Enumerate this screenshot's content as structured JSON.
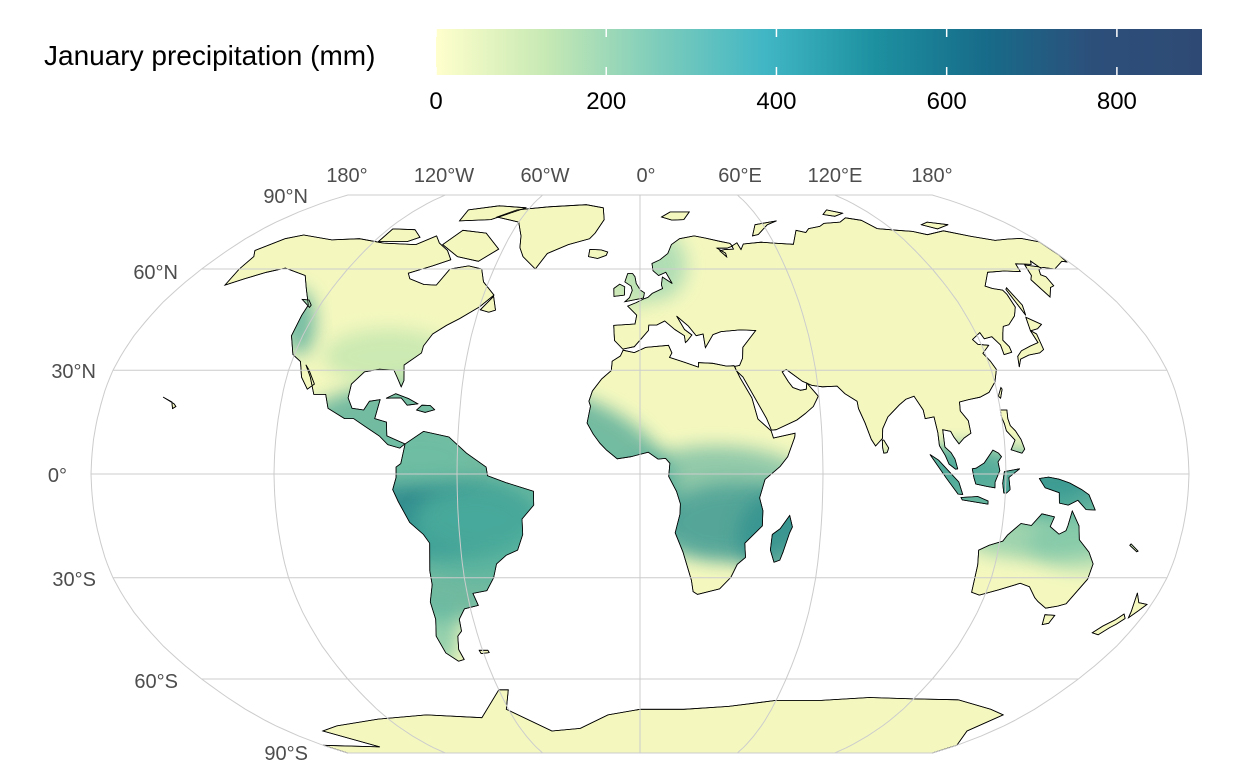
{
  "legend": {
    "title": "January precipitation (mm)",
    "ticks": [
      "0",
      "200",
      "400",
      "600",
      "800"
    ],
    "tick_values": [
      0,
      200,
      400,
      600,
      800
    ],
    "range": [
      0,
      900
    ],
    "colors": [
      "#ffffcc",
      "#c7e9b4",
      "#7fcdbb",
      "#41b6c4",
      "#1d91a0",
      "#176c8a",
      "#2c4f7a",
      "#2e4a74"
    ]
  },
  "map": {
    "projection": "Robinson",
    "graticule_color": "#cccccc",
    "land_base_color": "#f4f8bf",
    "border_color": "#000000",
    "top_labels": [
      "180°",
      "120°W",
      "60°W",
      "0°",
      "60°E",
      "120°E",
      "180°"
    ],
    "left_labels": [
      "90°N",
      "60°N",
      "30°N",
      "0°",
      "30°S",
      "60°S",
      "90°S"
    ],
    "wet_regions": [
      "Amazon basin",
      "Central Africa",
      "Madagascar",
      "Indonesia",
      "Papua New Guinea",
      "Northern Australia",
      "Pacific Northwest",
      "Norway coast"
    ]
  }
}
